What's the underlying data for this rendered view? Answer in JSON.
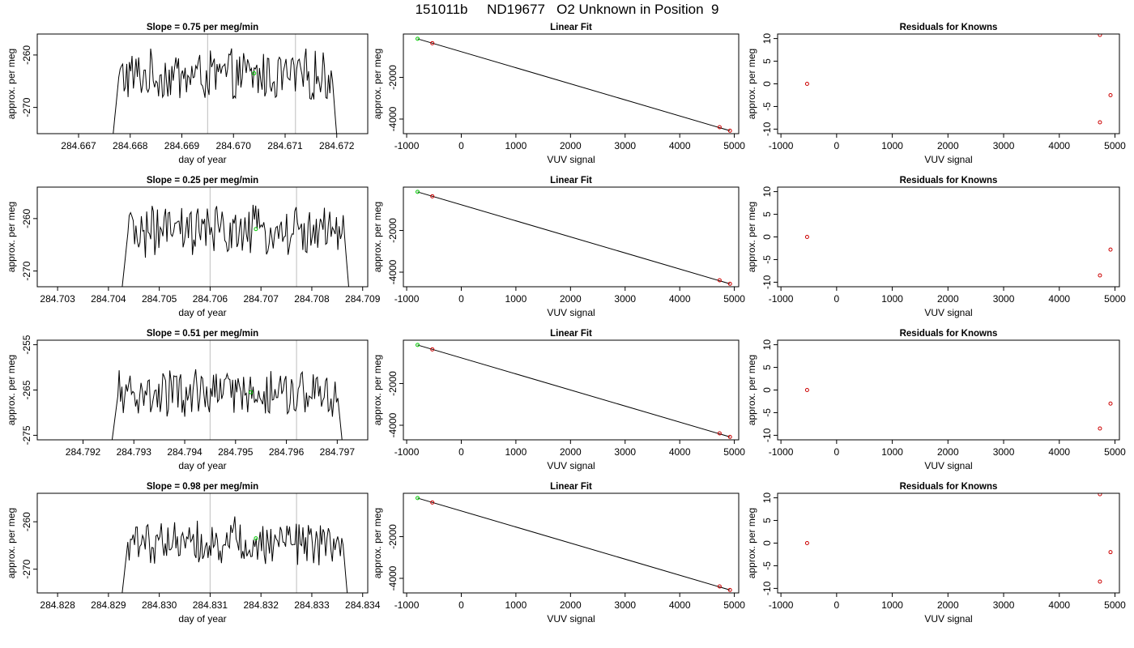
{
  "title": "151011b     ND19677   O2 Unknown in Position  9",
  "chart_data": [
    {
      "type": "line",
      "title": "Slope =  0.75  per meg/min",
      "xlabel": "day of year",
      "ylabel": "approx. per meg",
      "xlim": [
        284.6662,
        284.6726
      ],
      "ylim": [
        -275,
        -256
      ],
      "xticks": [
        "284.667",
        "284.668",
        "284.669",
        "284.670",
        "284.671",
        "284.672"
      ],
      "yticks": [
        "-270",
        "-260"
      ],
      "vlines": [
        284.6695,
        284.6712
      ],
      "x_start": 284.66765,
      "x_end": 284.67202,
      "level": -264,
      "jitter": 2.0,
      "marker": {
        "x": 284.6704,
        "y": -263.5,
        "color": "#00cc00"
      }
    },
    {
      "type": "scatter",
      "title": "Linear Fit",
      "xlabel": "VUV signal",
      "ylabel": "approx. per meg",
      "xlim": [
        -1060,
        5080
      ],
      "ylim": [
        -4700,
        80
      ],
      "xticks": [
        "-1000",
        "0",
        "1000",
        "2000",
        "3000",
        "4000",
        "5000"
      ],
      "yticks": [
        "-2000",
        "-4000"
      ],
      "fit_line": [
        [
          -800,
          -150
        ],
        [
          4920,
          -4560
        ]
      ],
      "points": [
        {
          "x": -800,
          "y": -150,
          "color": "#00cc00"
        },
        {
          "x": -530,
          "y": -360,
          "color": "#cc0000"
        },
        {
          "x": 4730,
          "y": -4390,
          "color": "#cc0000"
        },
        {
          "x": 4920,
          "y": -4560,
          "color": "#cc0000"
        }
      ]
    },
    {
      "type": "scatter",
      "title": "Residuals for Knowns",
      "xlabel": "VUV signal",
      "ylabel": "approx. per meg",
      "xlim": [
        -1060,
        5080
      ],
      "ylim": [
        -11,
        11
      ],
      "xticks": [
        "-1000",
        "0",
        "1000",
        "2000",
        "3000",
        "4000",
        "5000"
      ],
      "yticks": [
        "-10",
        "-5",
        "0",
        "5",
        "10"
      ],
      "points": [
        {
          "x": -530,
          "y": 0,
          "color": "#cc0000"
        },
        {
          "x": 4730,
          "y": -8.5,
          "color": "#cc0000"
        },
        {
          "x": 4920,
          "y": -2.5,
          "color": "#cc0000"
        },
        {
          "x": 4730,
          "y": 10.8,
          "color": "#cc0000"
        }
      ]
    },
    {
      "type": "line",
      "title": "Slope =  0.25  per meg/min",
      "xlabel": "day of year",
      "ylabel": "approx. per meg",
      "xlim": [
        284.7026,
        284.7091
      ],
      "ylim": [
        -273,
        -254
      ],
      "xticks": [
        "284.703",
        "284.704",
        "284.705",
        "284.706",
        "284.707",
        "284.708",
        "284.709"
      ],
      "yticks": [
        "-270",
        "-260"
      ],
      "vlines": [
        284.706,
        284.7077
      ],
      "x_start": 284.70425,
      "x_end": 284.70875,
      "level": -262.5,
      "jitter": 2.0,
      "marker": {
        "x": 284.7069,
        "y": -262,
        "color": "#00cc00"
      }
    },
    {
      "type": "scatter",
      "title": "Linear Fit",
      "xlabel": "VUV signal",
      "ylabel": "approx. per meg",
      "xlim": [
        -1060,
        5080
      ],
      "ylim": [
        -4700,
        80
      ],
      "xticks": [
        "-1000",
        "0",
        "1000",
        "2000",
        "3000",
        "4000",
        "5000"
      ],
      "yticks": [
        "-2000",
        "-4000"
      ],
      "fit_line": [
        [
          -800,
          -150
        ],
        [
          4920,
          -4560
        ]
      ],
      "points": [
        {
          "x": -800,
          "y": -150,
          "color": "#00cc00"
        },
        {
          "x": -530,
          "y": -360,
          "color": "#cc0000"
        },
        {
          "x": 4730,
          "y": -4390,
          "color": "#cc0000"
        },
        {
          "x": 4920,
          "y": -4560,
          "color": "#cc0000"
        }
      ]
    },
    {
      "type": "scatter",
      "title": "Residuals for Knowns",
      "xlabel": "VUV signal",
      "ylabel": "approx. per meg",
      "xlim": [
        -1060,
        5080
      ],
      "ylim": [
        -11,
        11
      ],
      "xticks": [
        "-1000",
        "0",
        "1000",
        "2000",
        "3000",
        "4000",
        "5000"
      ],
      "yticks": [
        "-10",
        "-5",
        "0",
        "5",
        "10"
      ],
      "points": [
        {
          "x": -530,
          "y": 0,
          "color": "#cc0000"
        },
        {
          "x": 4730,
          "y": -8.5,
          "color": "#cc0000"
        },
        {
          "x": 4920,
          "y": -2.8,
          "color": "#cc0000"
        }
      ]
    },
    {
      "type": "line",
      "title": "Slope =  0.51  per meg/min",
      "xlabel": "day of year",
      "ylabel": "approx. per meg",
      "xlim": [
        284.7911,
        284.7976
      ],
      "ylim": [
        -276,
        -254
      ],
      "xticks": [
        "284.792",
        "284.793",
        "284.794",
        "284.795",
        "284.796",
        "284.797"
      ],
      "yticks": [
        "-275",
        "-265",
        "-255"
      ],
      "vlines": [
        284.7945,
        284.7962
      ],
      "x_start": 284.79255,
      "x_end": 284.79712,
      "level": -266,
      "jitter": 2.2,
      "marker": {
        "x": 284.7953,
        "y": -265.5,
        "color": "#00cc00"
      }
    },
    {
      "type": "scatter",
      "title": "Linear Fit",
      "xlabel": "VUV signal",
      "ylabel": "approx. per meg",
      "xlim": [
        -1060,
        5080
      ],
      "ylim": [
        -4700,
        80
      ],
      "xticks": [
        "-1000",
        "0",
        "1000",
        "2000",
        "3000",
        "4000",
        "5000"
      ],
      "yticks": [
        "-2000",
        "-4000"
      ],
      "fit_line": [
        [
          -800,
          -150
        ],
        [
          4920,
          -4560
        ]
      ],
      "points": [
        {
          "x": -800,
          "y": -150,
          "color": "#00cc00"
        },
        {
          "x": -530,
          "y": -360,
          "color": "#cc0000"
        },
        {
          "x": 4730,
          "y": -4390,
          "color": "#cc0000"
        },
        {
          "x": 4920,
          "y": -4560,
          "color": "#cc0000"
        }
      ]
    },
    {
      "type": "scatter",
      "title": "Residuals for Knowns",
      "xlabel": "VUV signal",
      "ylabel": "approx. per meg",
      "xlim": [
        -1060,
        5080
      ],
      "ylim": [
        -11,
        11
      ],
      "xticks": [
        "-1000",
        "0",
        "1000",
        "2000",
        "3000",
        "4000",
        "5000"
      ],
      "yticks": [
        "-10",
        "-5",
        "0",
        "5",
        "10"
      ],
      "points": [
        {
          "x": -530,
          "y": 0,
          "color": "#cc0000"
        },
        {
          "x": 4730,
          "y": -8.5,
          "color": "#cc0000"
        },
        {
          "x": 4920,
          "y": -3.0,
          "color": "#cc0000"
        }
      ]
    },
    {
      "type": "line",
      "title": "Slope =  0.98  per meg/min",
      "xlabel": "day of year",
      "ylabel": "approx. per meg",
      "xlim": [
        284.8276,
        284.8341
      ],
      "ylim": [
        -275,
        -254
      ],
      "xticks": [
        "284.828",
        "284.829",
        "284.830",
        "284.831",
        "284.832",
        "284.833",
        "284.834"
      ],
      "yticks": [
        "-270",
        "-260"
      ],
      "vlines": [
        284.831,
        284.8327
      ],
      "x_start": 284.82925,
      "x_end": 284.83372,
      "level": -264,
      "jitter": 2.0,
      "marker": {
        "x": 284.8319,
        "y": -263.5,
        "color": "#00cc00"
      }
    },
    {
      "type": "scatter",
      "title": "Linear Fit",
      "xlabel": "VUV signal",
      "ylabel": "approx. per meg",
      "xlim": [
        -1060,
        5080
      ],
      "ylim": [
        -4700,
        80
      ],
      "xticks": [
        "-1000",
        "0",
        "1000",
        "2000",
        "3000",
        "4000",
        "5000"
      ],
      "yticks": [
        "-2000",
        "-4000"
      ],
      "fit_line": [
        [
          -800,
          -150
        ],
        [
          4920,
          -4560
        ]
      ],
      "points": [
        {
          "x": -800,
          "y": -150,
          "color": "#00cc00"
        },
        {
          "x": -530,
          "y": -360,
          "color": "#cc0000"
        },
        {
          "x": 4730,
          "y": -4390,
          "color": "#cc0000"
        },
        {
          "x": 4920,
          "y": -4560,
          "color": "#cc0000"
        }
      ]
    },
    {
      "type": "scatter",
      "title": "Residuals for Knowns",
      "xlabel": "VUV signal",
      "ylabel": "approx. per meg",
      "xlim": [
        -1060,
        5080
      ],
      "ylim": [
        -11,
        11
      ],
      "xticks": [
        "-1000",
        "0",
        "1000",
        "2000",
        "3000",
        "4000",
        "5000"
      ],
      "yticks": [
        "-10",
        "-5",
        "0",
        "5",
        "10"
      ],
      "points": [
        {
          "x": -530,
          "y": 0,
          "color": "#cc0000"
        },
        {
          "x": 4730,
          "y": -8.5,
          "color": "#cc0000"
        },
        {
          "x": 4920,
          "y": -2.0,
          "color": "#cc0000"
        },
        {
          "x": 4730,
          "y": 10.8,
          "color": "#cc0000"
        }
      ]
    }
  ]
}
